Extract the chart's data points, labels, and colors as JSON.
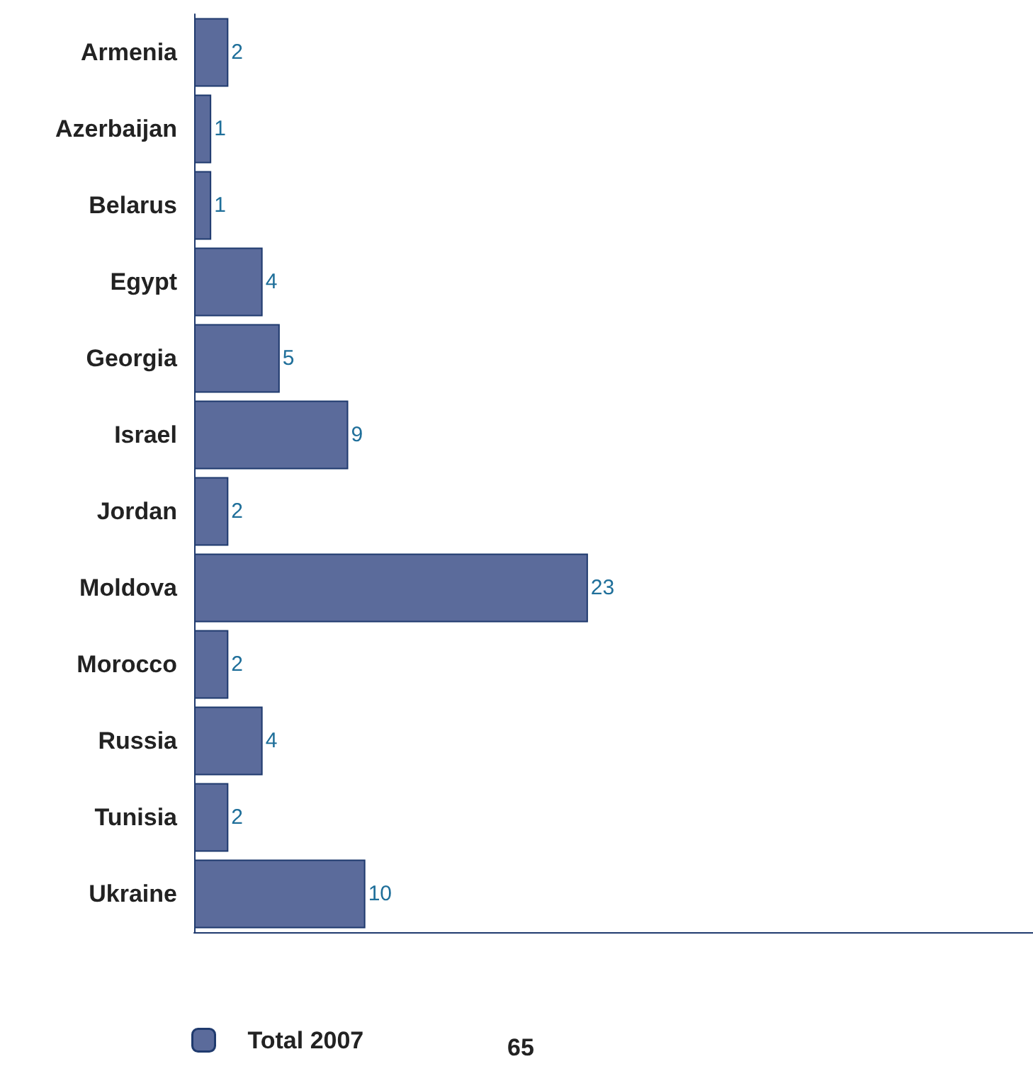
{
  "chart_data": {
    "type": "bar",
    "orientation": "horizontal",
    "categories": [
      "Armenia",
      "Azerbaijan",
      "Belarus",
      "Egypt",
      "Georgia",
      "Israel",
      "Jordan",
      "Moldova",
      "Morocco",
      "Russia",
      "Tunisia",
      "Ukraine"
    ],
    "series": [
      {
        "name": "Total 2007",
        "color": "#5b6b9b",
        "values": [
          2,
          1,
          1,
          4,
          5,
          9,
          2,
          23,
          2,
          4,
          2,
          10
        ]
      }
    ],
    "data_labels": true,
    "grid": false,
    "legend": "bottom left",
    "annotations": [
      "65"
    ]
  }
}
